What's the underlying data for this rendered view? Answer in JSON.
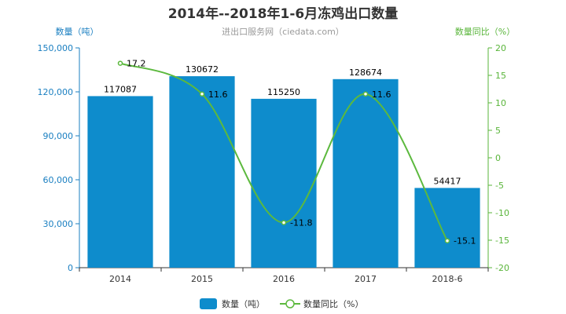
{
  "chart_data": {
    "type": "bar",
    "title": "2014年--2018年1-6月冻鸡出口数量",
    "subtitle": "进出口服务网（ciedata.com）",
    "categories": [
      "2014",
      "2015",
      "2016",
      "2017",
      "2018-6"
    ],
    "series": [
      {
        "name": "数量（吨）",
        "type": "bar",
        "axis": "left",
        "values": [
          117087,
          130672,
          115250,
          128674,
          54417
        ],
        "labels": [
          "117087",
          "130672",
          "115250",
          "128674",
          "54417"
        ]
      },
      {
        "name": "数量同比（%）",
        "type": "line",
        "axis": "right",
        "values": [
          17.2,
          11.6,
          -11.8,
          11.6,
          -15.1
        ],
        "labels": [
          "17.2",
          "11.6",
          "-11.8",
          "11.6",
          "-15.1"
        ]
      }
    ],
    "y_left": {
      "label": "数量（吨）",
      "min": 0,
      "max": 150000,
      "ticks": [
        0,
        30000,
        60000,
        90000,
        120000,
        150000
      ],
      "tick_labels": [
        "0",
        "30,000",
        "60,000",
        "90,000",
        "120,000",
        "150,000"
      ]
    },
    "y_right": {
      "label": "数量同比（%）",
      "min": -20,
      "max": 20,
      "ticks": [
        -20,
        -15,
        -10,
        -5,
        0,
        5,
        10,
        15,
        20
      ],
      "tick_labels": [
        "-20",
        "-15",
        "-10",
        "-5",
        "0",
        "5",
        "10",
        "15",
        "20"
      ]
    },
    "grid": false,
    "legend_position": "bottom-center",
    "colors": {
      "bar": "#0e8ccc",
      "line": "#5cb93e",
      "left_axis": "#1a7fc1",
      "right_axis": "#59b53a"
    }
  }
}
